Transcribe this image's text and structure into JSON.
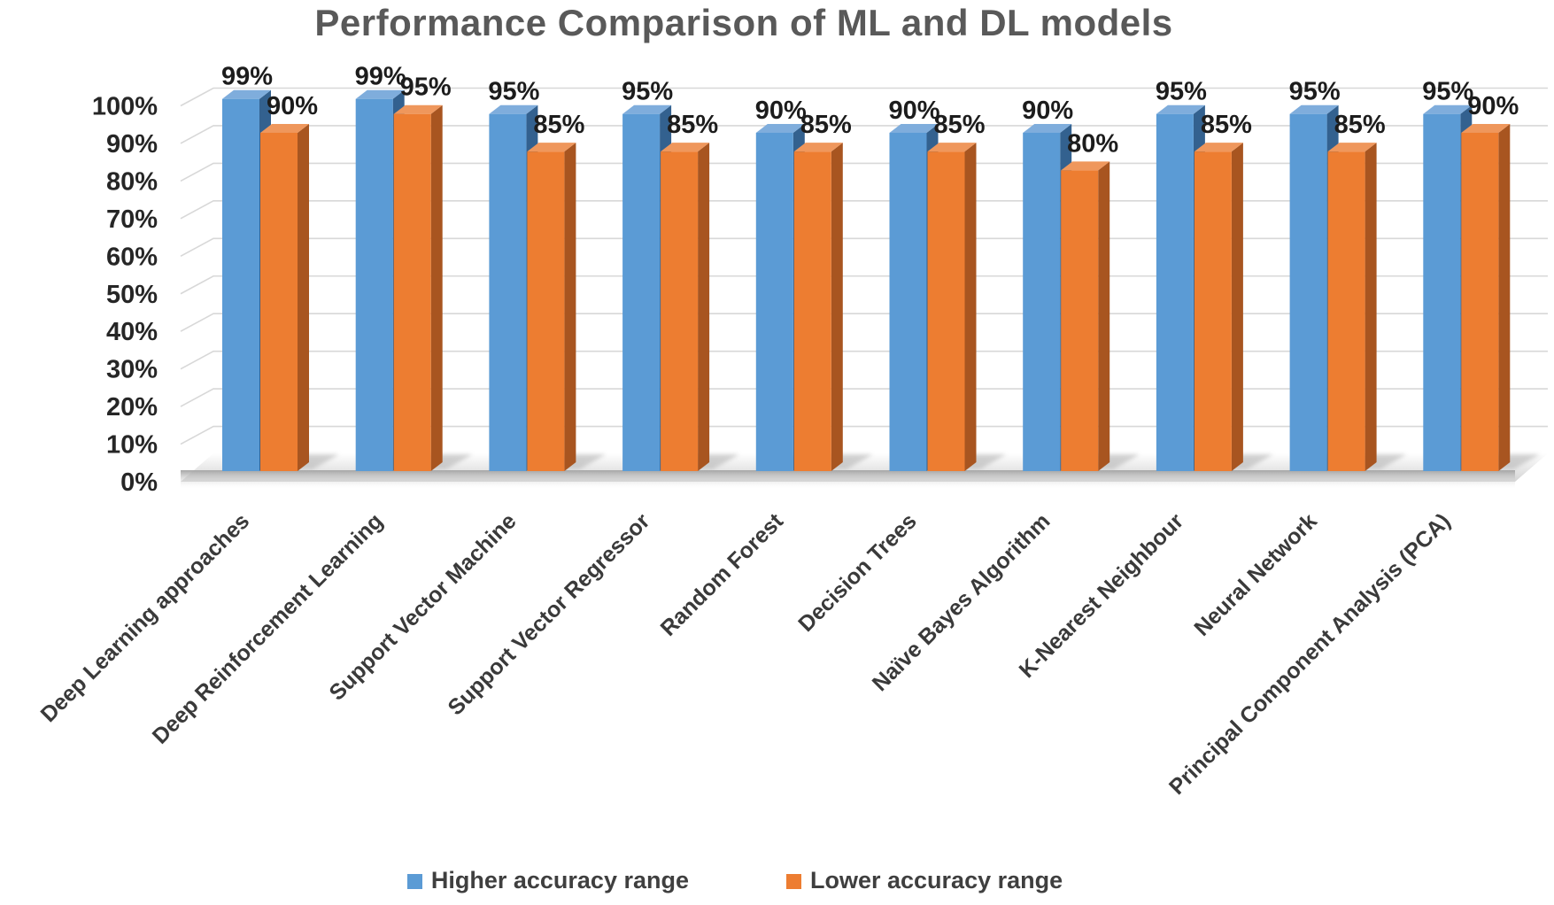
{
  "title": "Performance Comparison of ML and DL models",
  "chart_data": {
    "type": "bar",
    "style": "3d-clustered-column",
    "title": "Performance Comparison of ML and DL models",
    "categories": [
      "Deep Learning approaches",
      "Deep Reinforcement Learning",
      "Support Vector Machine",
      "Support Vector Regressor",
      "Random Forest",
      "Decision Trees",
      "Naïve Bayes Algorithm",
      "K-Nearest Neighbour",
      "Neural Network",
      "Principal Component Analysis (PCA)"
    ],
    "series": [
      {
        "name": "Higher accuracy range",
        "color": "#5B9BD5",
        "values": [
          99,
          99,
          95,
          95,
          90,
          90,
          90,
          95,
          95,
          95
        ]
      },
      {
        "name": "Lower accuracy range",
        "color": "#ED7D31",
        "values": [
          90,
          95,
          85,
          85,
          85,
          85,
          80,
          85,
          85,
          90
        ]
      }
    ],
    "value_label_suffix": "%",
    "y_ticks": [
      "0%",
      "10%",
      "20%",
      "30%",
      "40%",
      "50%",
      "60%",
      "70%",
      "80%",
      "90%",
      "100%"
    ],
    "ylim": [
      0,
      100
    ],
    "grid": true,
    "legend_position": "bottom",
    "xlabel": "",
    "ylabel": ""
  },
  "legend": {
    "items": [
      {
        "label": "Higher accuracy range",
        "color": "#5B9BD5"
      },
      {
        "label": "Lower accuracy range",
        "color": "#ED7D31"
      }
    ]
  },
  "colors": {
    "title_text": "#595959",
    "tick_text": "#262626",
    "value_text": "#1C1C1C",
    "category_text": "#3A3A3A",
    "gridline": "#D8D8D8",
    "blue_front": "#5B9BD5",
    "blue_top": "#7FADDC",
    "blue_side": "#33618F",
    "orange_front": "#ED7D31",
    "orange_top": "#EF975C",
    "orange_side": "#A85520",
    "floor_dark": "#A2A2A2"
  }
}
